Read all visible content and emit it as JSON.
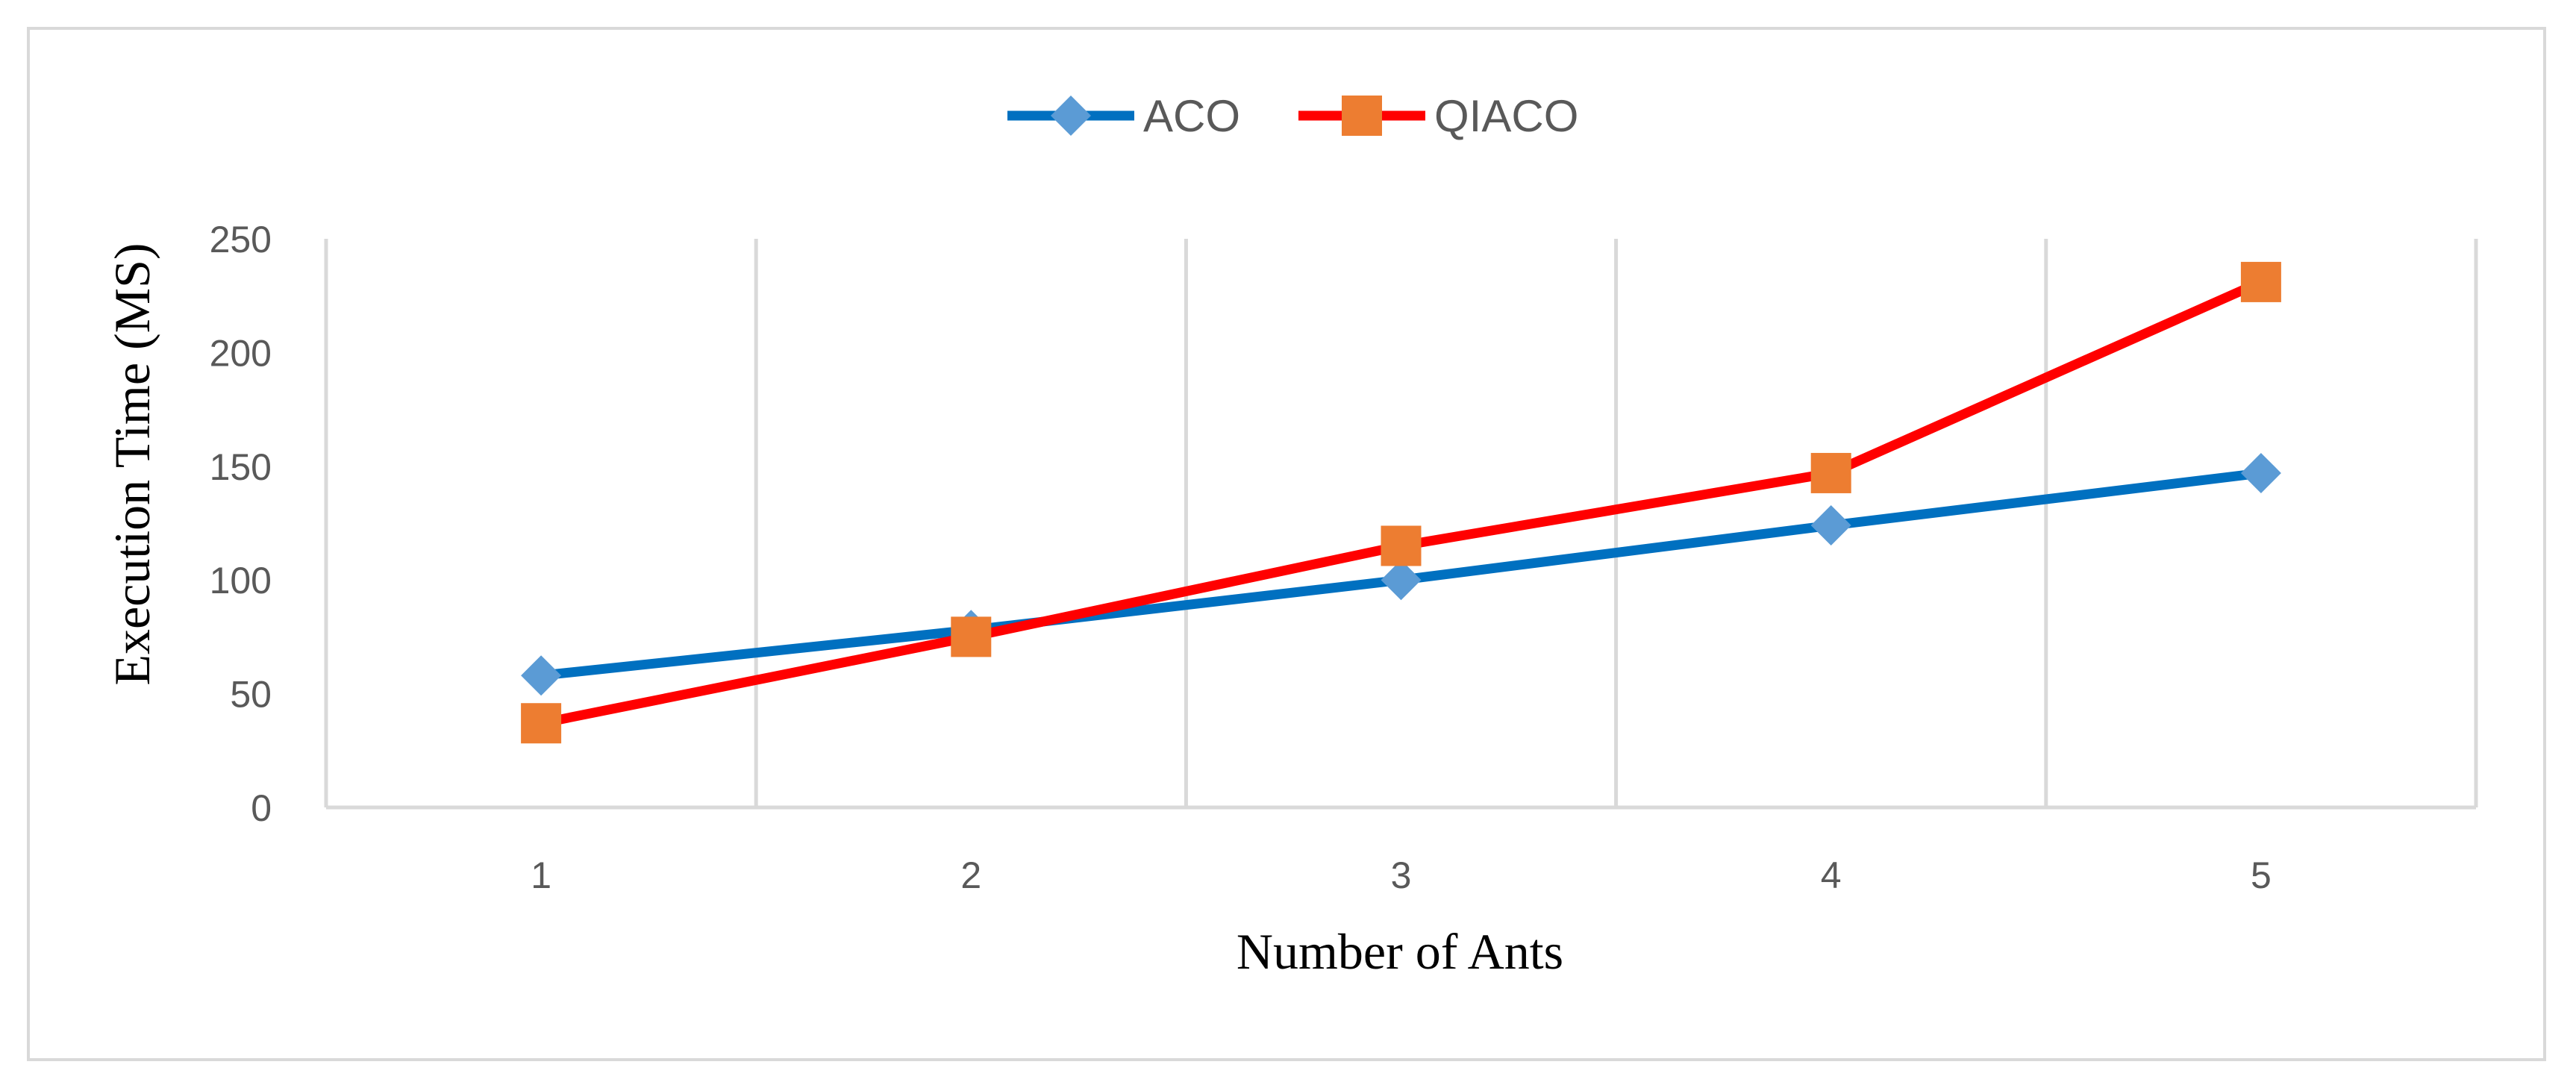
{
  "chart_data": {
    "type": "line",
    "title": "",
    "xlabel": "Number of Ants",
    "ylabel": "Execution Time (MS)",
    "categories": [
      "1",
      "2",
      "3",
      "4",
      "5"
    ],
    "y_ticks": [
      "0",
      "50",
      "100",
      "150",
      "200",
      "250"
    ],
    "ylim": [
      0,
      250
    ],
    "grid": "vertical",
    "legend_position": "top-center",
    "series": [
      {
        "name": "ACO",
        "marker": "diamond",
        "line_color": "#0070c0",
        "marker_color": "#5b9bd5",
        "values": [
          58,
          78,
          100,
          124,
          147
        ]
      },
      {
        "name": "QIACO",
        "marker": "square",
        "line_color": "#ff0000",
        "marker_color": "#ed7d31",
        "values": [
          37,
          75,
          115,
          147,
          231
        ]
      }
    ]
  }
}
